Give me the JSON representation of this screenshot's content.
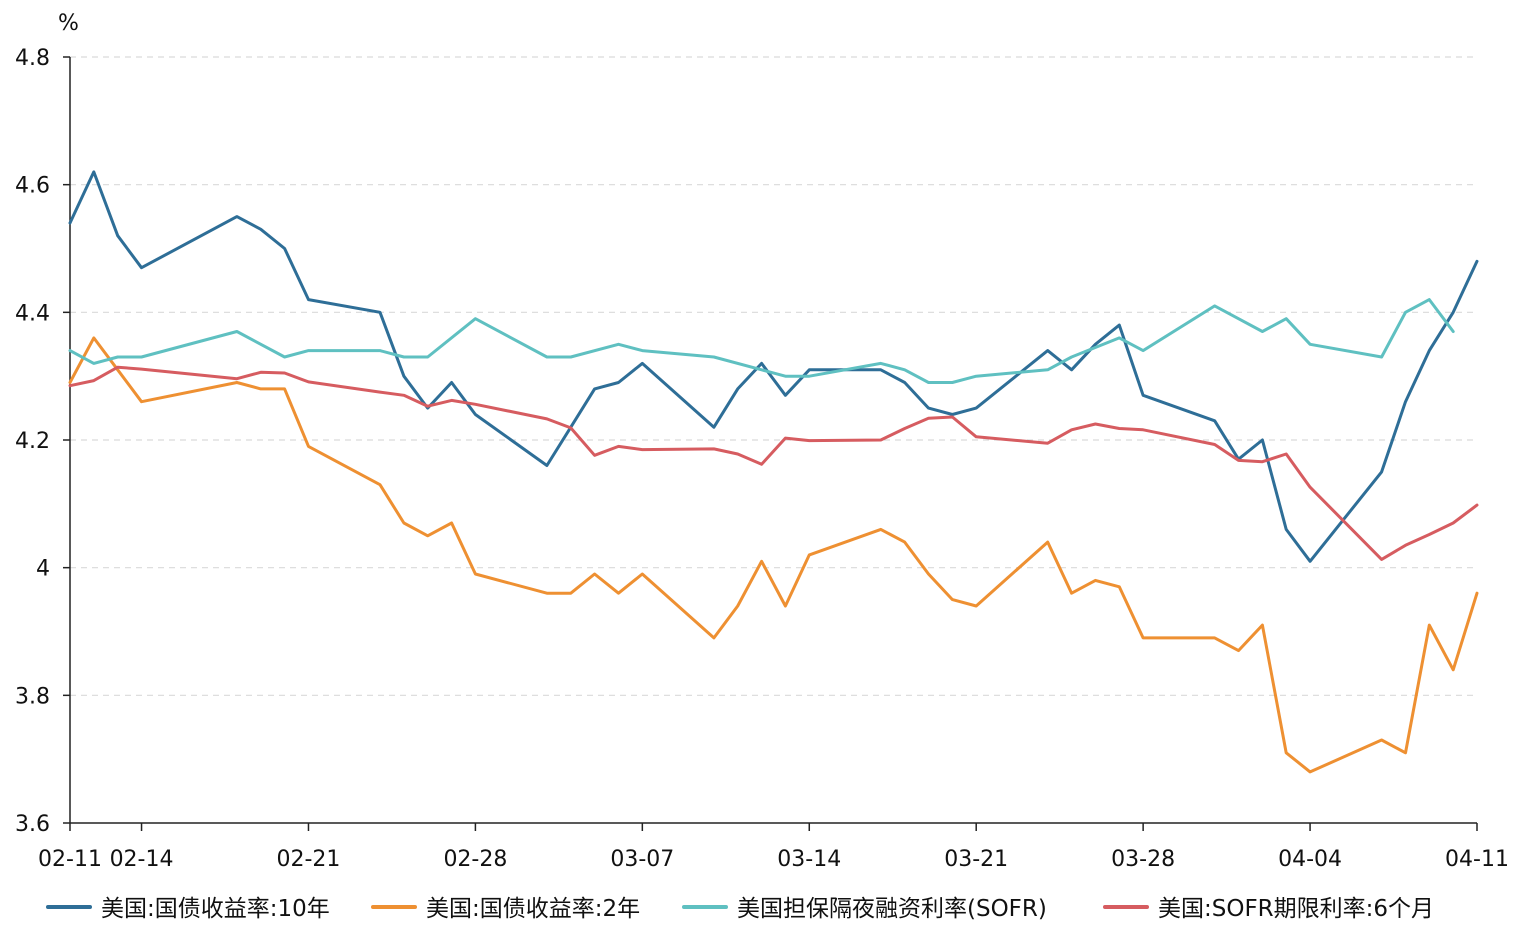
{
  "chart_data": {
    "type": "line",
    "y_unit": "%",
    "ylim": [
      3.6,
      4.8
    ],
    "yticks": [
      3.6,
      3.8,
      4,
      4.2,
      4.4,
      4.6,
      4.8
    ],
    "ytick_labels": [
      "3.6",
      "3.8",
      "4",
      "4.2",
      "4.4",
      "4.6",
      "4.8"
    ],
    "xlim": [
      "2025-02-11",
      "2025-04-11"
    ],
    "xtick_dates": [
      "2025-02-11",
      "2025-02-14",
      "2025-02-21",
      "2025-02-28",
      "2025-03-07",
      "2025-03-14",
      "2025-03-21",
      "2025-03-28",
      "2025-04-04",
      "2025-04-11"
    ],
    "xtick_labels": [
      "02-11",
      "02-14",
      "02-21",
      "02-28",
      "03-07",
      "03-14",
      "03-21",
      "03-28",
      "04-04",
      "04-11"
    ],
    "grid": "horizontal dashed",
    "legend_position": "bottom",
    "series": [
      {
        "name": "美国:国债收益率:10年",
        "color": "#2e6e97",
        "points": [
          [
            "2025-02-11",
            4.54
          ],
          [
            "2025-02-12",
            4.62
          ],
          [
            "2025-02-13",
            4.52
          ],
          [
            "2025-02-14",
            4.47
          ],
          [
            "2025-02-18",
            4.55
          ],
          [
            "2025-02-19",
            4.53
          ],
          [
            "2025-02-20",
            4.5
          ],
          [
            "2025-02-21",
            4.42
          ],
          [
            "2025-02-24",
            4.4
          ],
          [
            "2025-02-25",
            4.3
          ],
          [
            "2025-02-26",
            4.25
          ],
          [
            "2025-02-27",
            4.29
          ],
          [
            "2025-02-28",
            4.24
          ],
          [
            "2025-03-03",
            4.16
          ],
          [
            "2025-03-04",
            4.22
          ],
          [
            "2025-03-05",
            4.28
          ],
          [
            "2025-03-06",
            4.29
          ],
          [
            "2025-03-07",
            4.32
          ],
          [
            "2025-03-10",
            4.22
          ],
          [
            "2025-03-11",
            4.28
          ],
          [
            "2025-03-12",
            4.32
          ],
          [
            "2025-03-13",
            4.27
          ],
          [
            "2025-03-14",
            4.31
          ],
          [
            "2025-03-17",
            4.31
          ],
          [
            "2025-03-18",
            4.29
          ],
          [
            "2025-03-19",
            4.25
          ],
          [
            "2025-03-20",
            4.24
          ],
          [
            "2025-03-21",
            4.25
          ],
          [
            "2025-03-24",
            4.34
          ],
          [
            "2025-03-25",
            4.31
          ],
          [
            "2025-03-26",
            4.35
          ],
          [
            "2025-03-27",
            4.38
          ],
          [
            "2025-03-28",
            4.27
          ],
          [
            "2025-03-31",
            4.23
          ],
          [
            "2025-04-01",
            4.17
          ],
          [
            "2025-04-02",
            4.2
          ],
          [
            "2025-04-03",
            4.06
          ],
          [
            "2025-04-04",
            4.01
          ],
          [
            "2025-04-07",
            4.15
          ],
          [
            "2025-04-08",
            4.26
          ],
          [
            "2025-04-09",
            4.34
          ],
          [
            "2025-04-10",
            4.4
          ],
          [
            "2025-04-11",
            4.48
          ]
        ]
      },
      {
        "name": "美国:国债收益率:2年",
        "color": "#ee9032",
        "points": [
          [
            "2025-02-11",
            4.29
          ],
          [
            "2025-02-12",
            4.36
          ],
          [
            "2025-02-13",
            4.31
          ],
          [
            "2025-02-14",
            4.26
          ],
          [
            "2025-02-18",
            4.29
          ],
          [
            "2025-02-19",
            4.28
          ],
          [
            "2025-02-20",
            4.28
          ],
          [
            "2025-02-21",
            4.19
          ],
          [
            "2025-02-24",
            4.13
          ],
          [
            "2025-02-25",
            4.07
          ],
          [
            "2025-02-26",
            4.05
          ],
          [
            "2025-02-27",
            4.07
          ],
          [
            "2025-02-28",
            3.99
          ],
          [
            "2025-03-03",
            3.96
          ],
          [
            "2025-03-04",
            3.96
          ],
          [
            "2025-03-05",
            3.99
          ],
          [
            "2025-03-06",
            3.96
          ],
          [
            "2025-03-07",
            3.99
          ],
          [
            "2025-03-10",
            3.89
          ],
          [
            "2025-03-11",
            3.94
          ],
          [
            "2025-03-12",
            4.01
          ],
          [
            "2025-03-13",
            3.94
          ],
          [
            "2025-03-14",
            4.02
          ],
          [
            "2025-03-17",
            4.06
          ],
          [
            "2025-03-18",
            4.04
          ],
          [
            "2025-03-19",
            3.99
          ],
          [
            "2025-03-20",
            3.95
          ],
          [
            "2025-03-21",
            3.94
          ],
          [
            "2025-03-24",
            4.04
          ],
          [
            "2025-03-25",
            3.96
          ],
          [
            "2025-03-26",
            3.98
          ],
          [
            "2025-03-27",
            3.97
          ],
          [
            "2025-03-28",
            3.89
          ],
          [
            "2025-03-31",
            3.89
          ],
          [
            "2025-04-01",
            3.87
          ],
          [
            "2025-04-02",
            3.91
          ],
          [
            "2025-04-03",
            3.71
          ],
          [
            "2025-04-04",
            3.68
          ],
          [
            "2025-04-07",
            3.73
          ],
          [
            "2025-04-08",
            3.71
          ],
          [
            "2025-04-09",
            3.91
          ],
          [
            "2025-04-10",
            3.84
          ],
          [
            "2025-04-11",
            3.96
          ]
        ]
      },
      {
        "name": "美国担保隔夜融资利率(SOFR)",
        "color": "#5fc0c1",
        "points": [
          [
            "2025-02-11",
            4.34
          ],
          [
            "2025-02-12",
            4.32
          ],
          [
            "2025-02-13",
            4.33
          ],
          [
            "2025-02-14",
            4.33
          ],
          [
            "2025-02-18",
            4.37
          ],
          [
            "2025-02-19",
            4.35
          ],
          [
            "2025-02-20",
            4.33
          ],
          [
            "2025-02-21",
            4.34
          ],
          [
            "2025-02-24",
            4.34
          ],
          [
            "2025-02-25",
            4.33
          ],
          [
            "2025-02-26",
            4.33
          ],
          [
            "2025-02-28",
            4.39
          ],
          [
            "2025-03-03",
            4.33
          ],
          [
            "2025-03-04",
            4.33
          ],
          [
            "2025-03-06",
            4.35
          ],
          [
            "2025-03-07",
            4.34
          ],
          [
            "2025-03-10",
            4.33
          ],
          [
            "2025-03-12",
            4.31
          ],
          [
            "2025-03-13",
            4.3
          ],
          [
            "2025-03-14",
            4.3
          ],
          [
            "2025-03-17",
            4.32
          ],
          [
            "2025-03-18",
            4.31
          ],
          [
            "2025-03-19",
            4.29
          ],
          [
            "2025-03-20",
            4.29
          ],
          [
            "2025-03-21",
            4.3
          ],
          [
            "2025-03-24",
            4.31
          ],
          [
            "2025-03-25",
            4.33
          ],
          [
            "2025-03-27",
            4.36
          ],
          [
            "2025-03-28",
            4.34
          ],
          [
            "2025-03-31",
            4.41
          ],
          [
            "2025-04-01",
            4.39
          ],
          [
            "2025-04-02",
            4.37
          ],
          [
            "2025-04-03",
            4.39
          ],
          [
            "2025-04-04",
            4.35
          ],
          [
            "2025-04-07",
            4.33
          ],
          [
            "2025-04-08",
            4.4
          ],
          [
            "2025-04-09",
            4.42
          ],
          [
            "2025-04-10",
            4.37
          ]
        ]
      },
      {
        "name": "美国:SOFR期限利率:6个月",
        "color": "#d65c60",
        "points": [
          [
            "2025-02-11",
            4.285
          ],
          [
            "2025-02-12",
            4.293
          ],
          [
            "2025-02-13",
            4.314
          ],
          [
            "2025-02-14",
            4.311
          ],
          [
            "2025-02-18",
            4.296
          ],
          [
            "2025-02-19",
            4.306
          ],
          [
            "2025-02-20",
            4.305
          ],
          [
            "2025-02-21",
            4.291
          ],
          [
            "2025-02-24",
            4.275
          ],
          [
            "2025-02-25",
            4.27
          ],
          [
            "2025-02-26",
            4.253
          ],
          [
            "2025-02-27",
            4.262
          ],
          [
            "2025-02-28",
            4.256
          ],
          [
            "2025-03-03",
            4.233
          ],
          [
            "2025-03-04",
            4.219
          ],
          [
            "2025-03-05",
            4.176
          ],
          [
            "2025-03-06",
            4.19
          ],
          [
            "2025-03-07",
            4.185
          ],
          [
            "2025-03-10",
            4.186
          ],
          [
            "2025-03-11",
            4.178
          ],
          [
            "2025-03-12",
            4.162
          ],
          [
            "2025-03-13",
            4.203
          ],
          [
            "2025-03-14",
            4.199
          ],
          [
            "2025-03-17",
            4.2
          ],
          [
            "2025-03-18",
            4.218
          ],
          [
            "2025-03-19",
            4.234
          ],
          [
            "2025-03-20",
            4.236
          ],
          [
            "2025-03-21",
            4.205
          ],
          [
            "2025-03-24",
            4.195
          ],
          [
            "2025-03-25",
            4.216
          ],
          [
            "2025-03-26",
            4.225
          ],
          [
            "2025-03-27",
            4.218
          ],
          [
            "2025-03-28",
            4.216
          ],
          [
            "2025-03-31",
            4.193
          ],
          [
            "2025-04-01",
            4.168
          ],
          [
            "2025-04-02",
            4.166
          ],
          [
            "2025-04-03",
            4.178
          ],
          [
            "2025-04-04",
            4.126
          ],
          [
            "2025-04-07",
            4.013
          ],
          [
            "2025-04-08",
            4.035
          ],
          [
            "2025-04-09",
            4.052
          ],
          [
            "2025-04-10",
            4.07
          ],
          [
            "2025-04-11",
            4.098
          ]
        ]
      }
    ]
  }
}
